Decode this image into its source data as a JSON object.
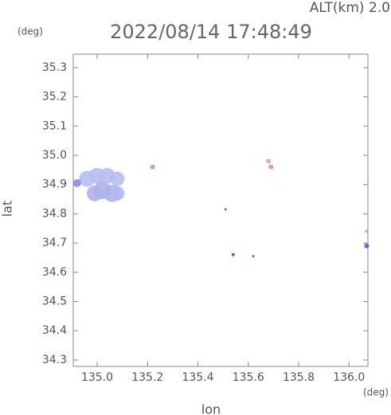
{
  "chart_data": {
    "type": "scatter",
    "title": "2022/08/14 17:48:49",
    "subtitle": "ALT(km) 2.0",
    "y_unit": "(deg)",
    "x_unit": "(deg)",
    "xlabel": "lon",
    "ylabel": "lat",
    "xlim": [
      134.905,
      136.075
    ],
    "ylim": [
      34.278,
      35.346
    ],
    "xticks": [
      {
        "value": 135.0,
        "label": "135.0"
      },
      135.2,
      135.4,
      135.6,
      135.8,
      {
        "value": 136.0,
        "label": "136.0"
      }
    ],
    "yticks": [
      {
        "value": 34.3,
        "label": "34.3"
      },
      34.4,
      34.5,
      34.6,
      34.7,
      34.8,
      34.9,
      {
        "value": 35.0,
        "label": "35.0"
      },
      35.1,
      35.2,
      35.3
    ],
    "x": [
      134.96,
      135.0,
      135.04,
      135.08,
      135.02,
      135.06,
      134.99,
      135.08,
      134.92,
      135.22,
      135.51,
      135.68,
      135.69,
      135.54,
      135.62,
      136.07,
      136.07
    ],
    "y": [
      34.92,
      34.93,
      34.93,
      34.92,
      34.88,
      34.87,
      34.87,
      34.87,
      34.905,
      34.96,
      34.815,
      34.98,
      34.96,
      34.66,
      34.655,
      34.69,
      34.74
    ],
    "sizes": [
      10,
      10,
      10,
      9,
      11,
      11,
      10,
      9,
      5,
      3,
      1.5,
      3,
      3,
      2,
      1.5,
      3,
      2
    ],
    "colors": [
      "#b8bcef",
      "#b8bcef",
      "#b8bcef",
      "#b8bcef",
      "#aeb2ec",
      "#aeb2ec",
      "#aeb2ec",
      "#b4b8ee",
      "#8c8ee0",
      "#9a9ce4",
      "#5a5ad0",
      "#e6a0b8",
      "#e08aa8",
      "#4a4ad0",
      "#4a4ad0",
      "#5a5ad8",
      "#e690a8"
    ]
  }
}
